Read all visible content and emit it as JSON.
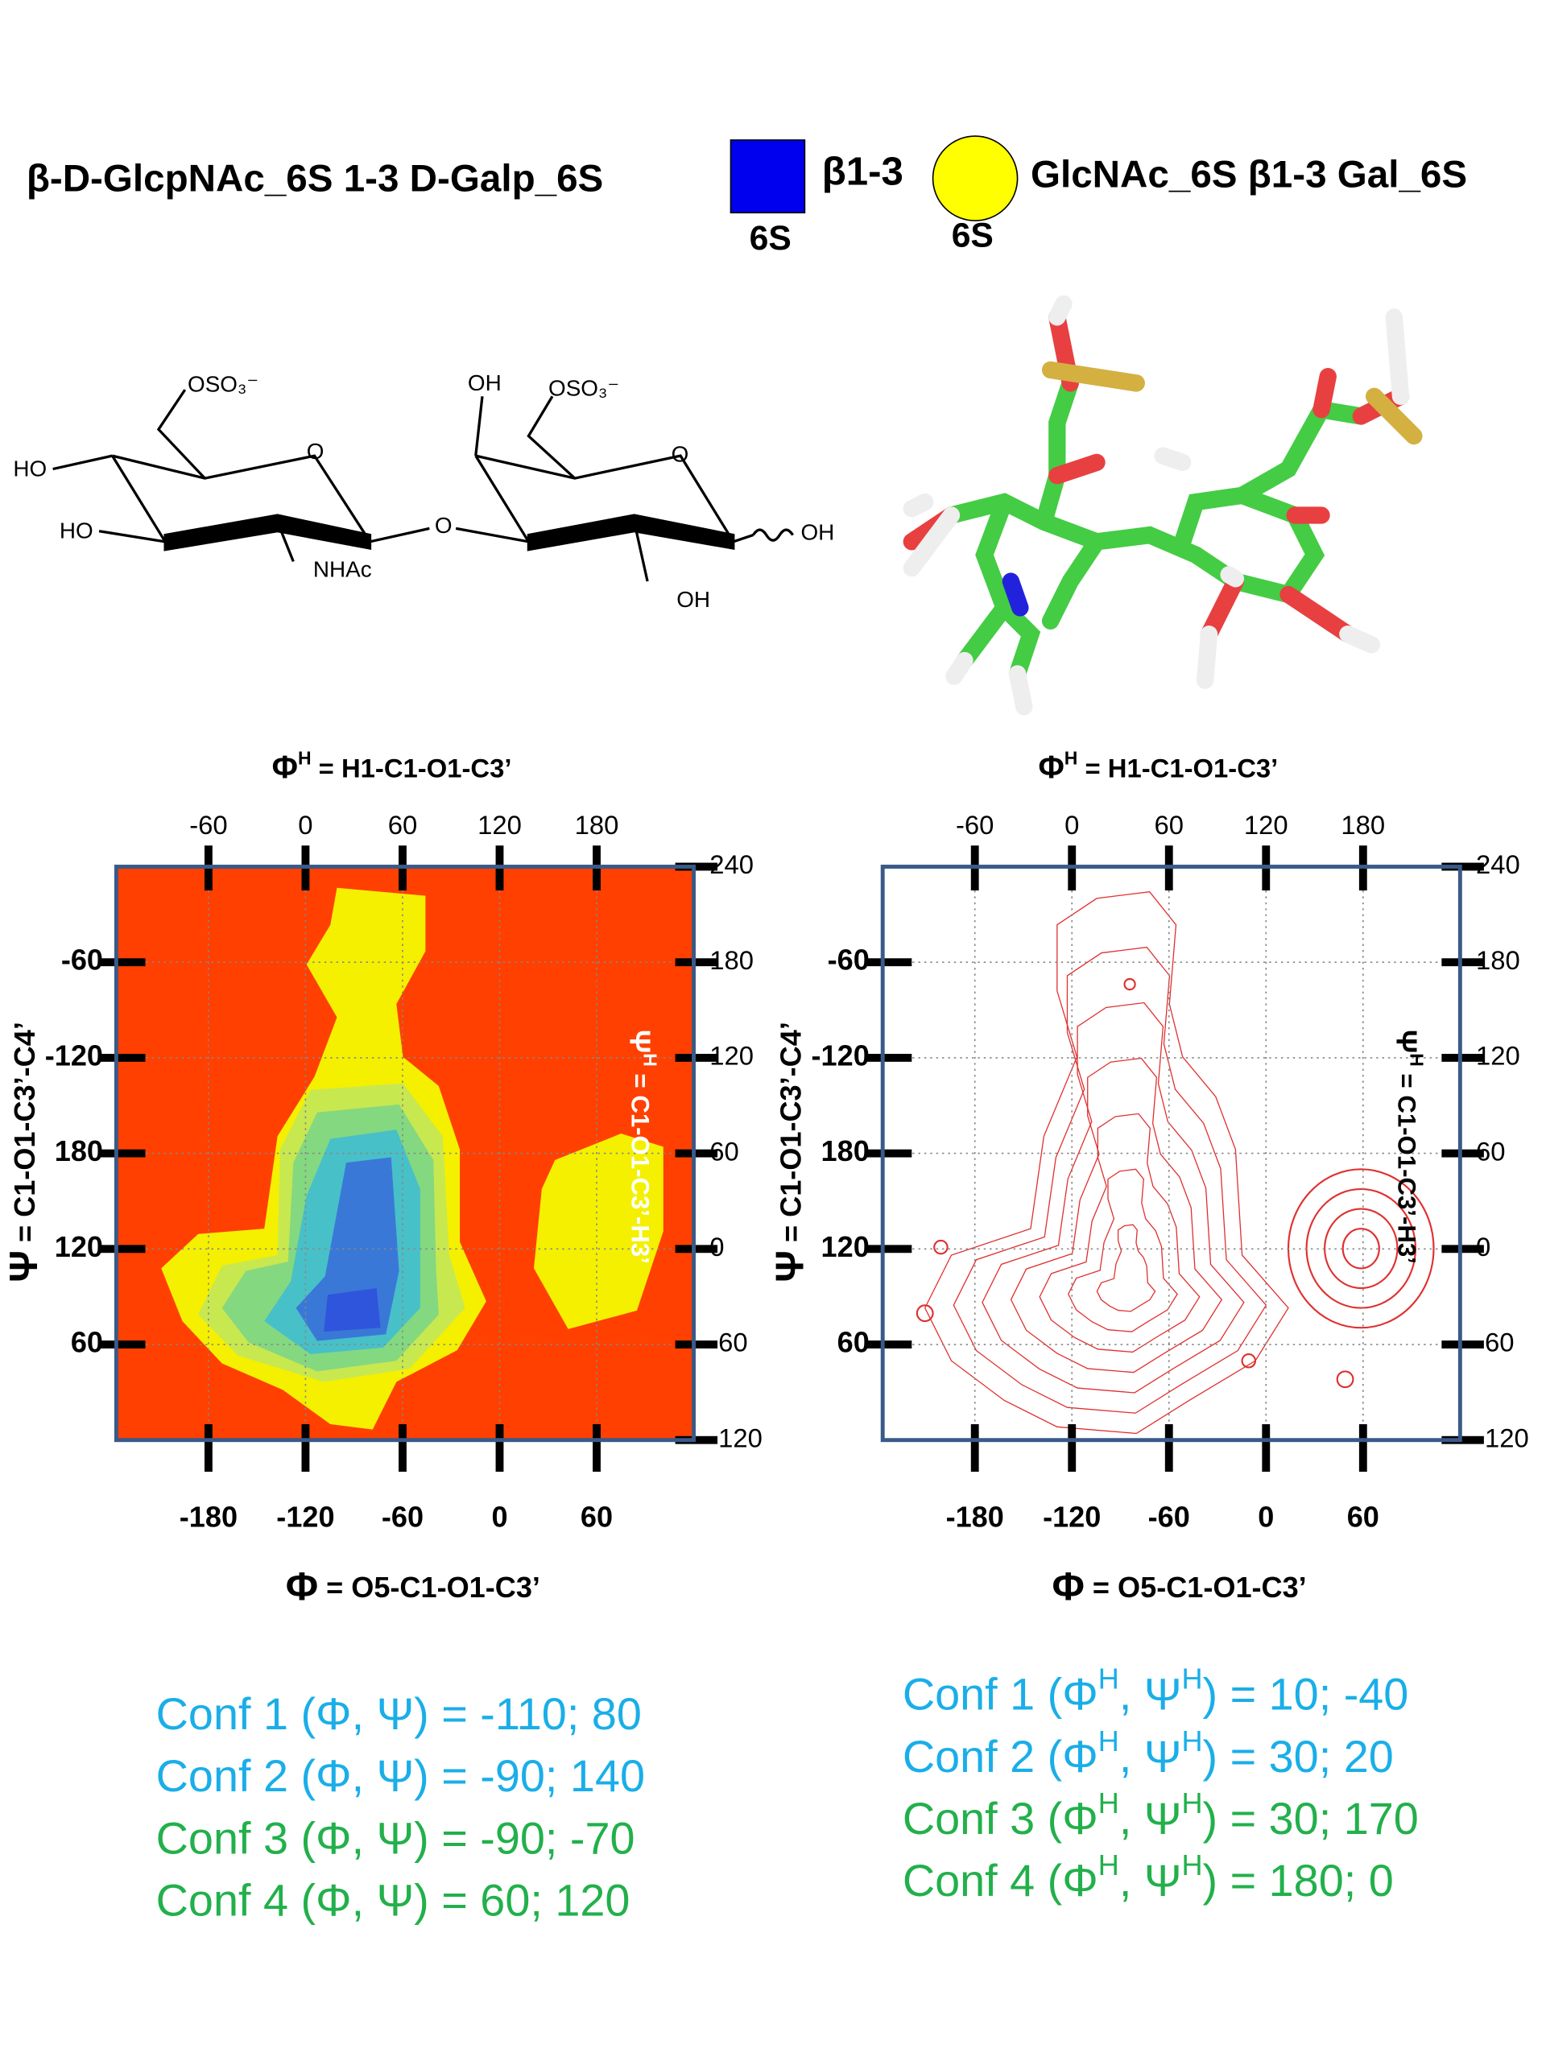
{
  "header": {
    "title_left": "β-D-GlcpNAc_6S 1-3 D-Galp_6S",
    "square_label": "6S",
    "linkage": "β1-3",
    "circle_label": "6S",
    "title_right": "GlcNAc_6S β1-3 Gal_6S"
  },
  "structure": {
    "labels": [
      "OSO₃⁻",
      "HO",
      "HO",
      "O",
      "NHAc",
      "O",
      "OH",
      "OSO₃⁻",
      "O",
      "OH",
      "OH"
    ]
  },
  "chart_data": [
    {
      "type": "heatmap",
      "xlabel": {
        "symbol": "Φ",
        "text": " = O5-C1-O1-C3’"
      },
      "x2label": {
        "symbol": "Φ",
        "sup": "H",
        "text": " = H1-C1-O1-C3’"
      },
      "ylabel": {
        "symbol": "Ψ",
        "text": " = C1-O1-C3’-C4’"
      },
      "y2label": {
        "symbol": "Ψ",
        "sup": "H",
        "text": " = C1-O1-C3’-H3’"
      },
      "y2label_color": "#ffffff",
      "background": "#ff4000",
      "xlim": [
        -237,
        120
      ],
      "xticks": [
        -180,
        -120,
        -60,
        0,
        60
      ],
      "x2lim": [
        -117,
        240
      ],
      "x2ticks": [
        -60,
        0,
        60,
        120,
        180
      ],
      "ylim": [
        -360,
        0
      ],
      "yticks": [
        -60,
        -120,
        {
          "value": -180,
          "label": "180"
        },
        {
          "value": -240,
          "label": "120"
        },
        {
          "value": -300,
          "label": "60"
        }
      ],
      "y2lim": [
        -120,
        240
      ],
      "y2ticks": [
        240,
        180,
        120,
        60,
        0,
        -60,
        -120
      ],
      "grid": true
    },
    {
      "type": "contour",
      "xlabel": {
        "symbol": "Φ",
        "text": " = O5-C1-O1-C3’"
      },
      "x2label": {
        "symbol": "Φ",
        "sup": "H",
        "text": " = H1-C1-O1-C3’"
      },
      "ylabel": {
        "symbol": "Ψ",
        "text": " = C1-O1-C3’-C4’"
      },
      "y2label": {
        "symbol": "Ψ",
        "sup": "H",
        "text": " = C1-O1-C3’-H3’"
      },
      "y2label_color": "#000000",
      "color": "#e03030",
      "xlim": [
        -237,
        120
      ],
      "xticks": [
        -180,
        -120,
        -60,
        0,
        60
      ],
      "x2lim": [
        -117,
        240
      ],
      "x2ticks": [
        -60,
        0,
        60,
        120,
        180
      ],
      "ylim": [
        -360,
        0
      ],
      "yticks": [
        -60,
        -120,
        {
          "value": -180,
          "label": "180"
        },
        {
          "value": -240,
          "label": "120"
        },
        {
          "value": -300,
          "label": "60"
        }
      ],
      "y2lim": [
        -120,
        240
      ],
      "y2ticks": [
        240,
        180,
        120,
        60,
        0,
        -60,
        -120
      ],
      "grid": true
    }
  ],
  "conformations": {
    "left": [
      "Conf 1 (Φ, Ψ) = -110; 80",
      "Conf 2 (Φ, Ψ) =  -90; 140",
      "Conf 3 (Φ, Ψ) =  -90; -70",
      "Conf 4 (Φ, Ψ) =   60; 120"
    ],
    "right": [
      [
        "Conf 1 (Φ",
        "H",
        ", Ψ",
        "H",
        ") = 10; -40"
      ],
      [
        "Conf 2 (Φ",
        "H",
        ", Ψ",
        "H",
        ") = 30; 20"
      ],
      [
        "Conf 3 (Φ",
        "H",
        ", Ψ",
        "H",
        ") = 30; 170"
      ],
      [
        "Conf 4 (Φ",
        "H",
        ", Ψ",
        "H",
        ") = 180; 0"
      ]
    ],
    "colors": [
      "#1aaee8",
      "#1aaee8",
      "#22b04b",
      "#22b04b"
    ]
  }
}
